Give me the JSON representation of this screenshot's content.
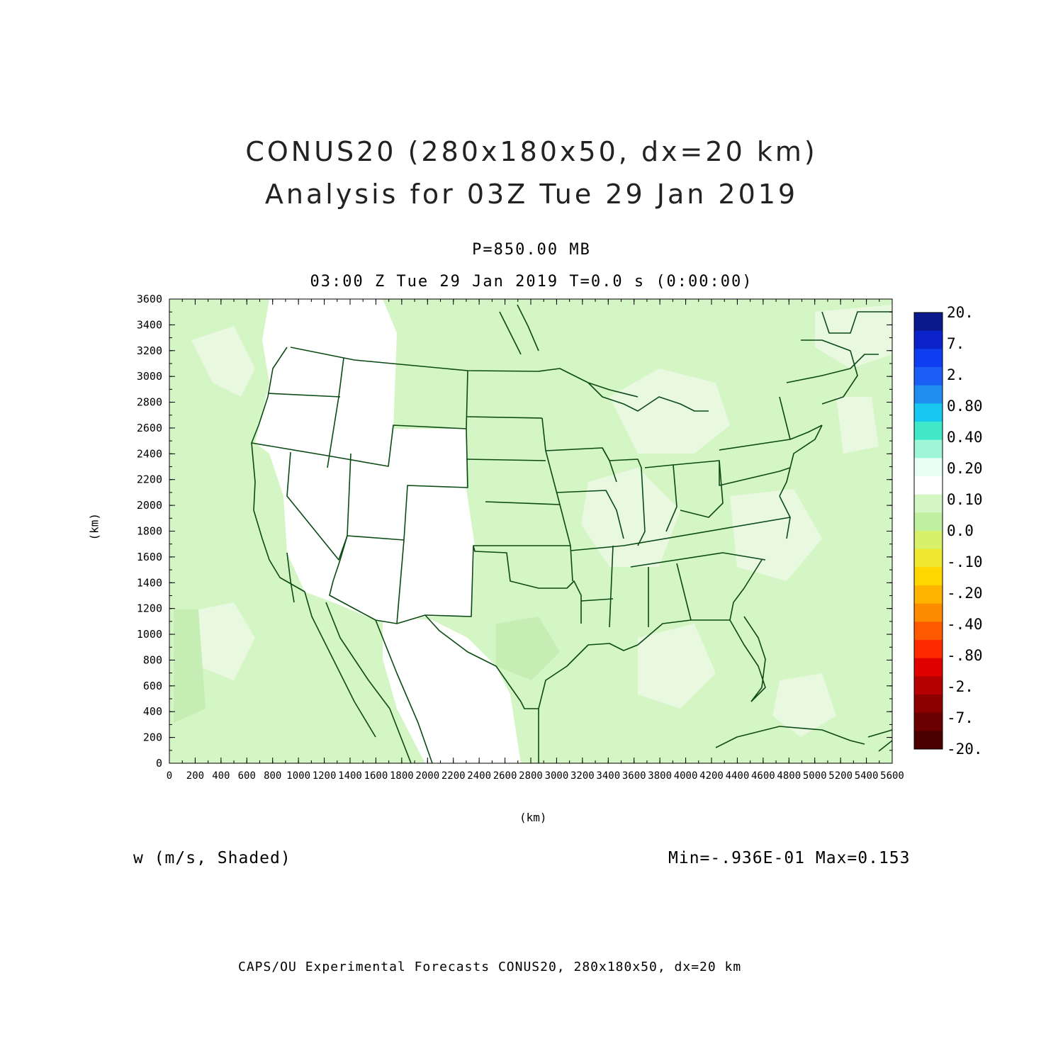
{
  "header": {
    "title_line1": "CONUS20 (280x180x50, dx=20 km)",
    "title_line2": "Analysis for 03Z Tue 29 Jan 2019",
    "level": "P=850.00 MB",
    "time": "03:00 Z Tue 29 Jan 2019    T=0.0 s (0:00:00)"
  },
  "axes": {
    "x_label": "(km)",
    "y_label": "(km)",
    "x_ticks": [
      "0",
      "200",
      "400",
      "600",
      "800",
      "1000",
      "1200",
      "1400",
      "1600",
      "1800",
      "2000",
      "2200",
      "2400",
      "2600",
      "2800",
      "3000",
      "3200",
      "3400",
      "3600",
      "3800",
      "4000",
      "4200",
      "4400",
      "4600",
      "4800",
      "5000",
      "5200",
      "5400",
      "5600"
    ],
    "y_ticks": [
      "0",
      "200",
      "400",
      "600",
      "800",
      "1000",
      "1200",
      "1400",
      "1600",
      "1800",
      "2000",
      "2200",
      "2400",
      "2600",
      "2800",
      "3000",
      "3200",
      "3400",
      "3600"
    ],
    "x_range": [
      0,
      5600
    ],
    "y_range": [
      0,
      3600
    ]
  },
  "colorbar": {
    "labels": [
      "20.",
      "7.",
      "2.",
      "0.80",
      "0.40",
      "0.20",
      "0.10",
      "0.0",
      "-.10",
      "-.20",
      "-.40",
      "-.80",
      "-2.",
      "-7.",
      "-20."
    ],
    "colors": [
      "#0a1a8c",
      "#0a22c8",
      "#0f3df0",
      "#1a5ef5",
      "#1f8ef0",
      "#18c8f0",
      "#40e8c8",
      "#9ef5d8",
      "#e8fff4",
      "#ffffff",
      "#d4f5c4",
      "#bff0a0",
      "#d8f06a",
      "#f0e830",
      "#ffd700",
      "#ffb400",
      "#ff8c00",
      "#ff5a00",
      "#ff2a00",
      "#e00000",
      "#b40000",
      "#8c0000",
      "#6a0000",
      "#4a0000"
    ]
  },
  "footer": {
    "field": "w (m/s, Shaded)",
    "minmax": "Min=-.936E-01 Max=0.153",
    "credit": "CAPS/OU Experimental Forecasts  CONUS20, 280x180x50, dx=20 km"
  },
  "map": {
    "background_color": "#d8f5c8",
    "line_color": "#0b4a14"
  }
}
